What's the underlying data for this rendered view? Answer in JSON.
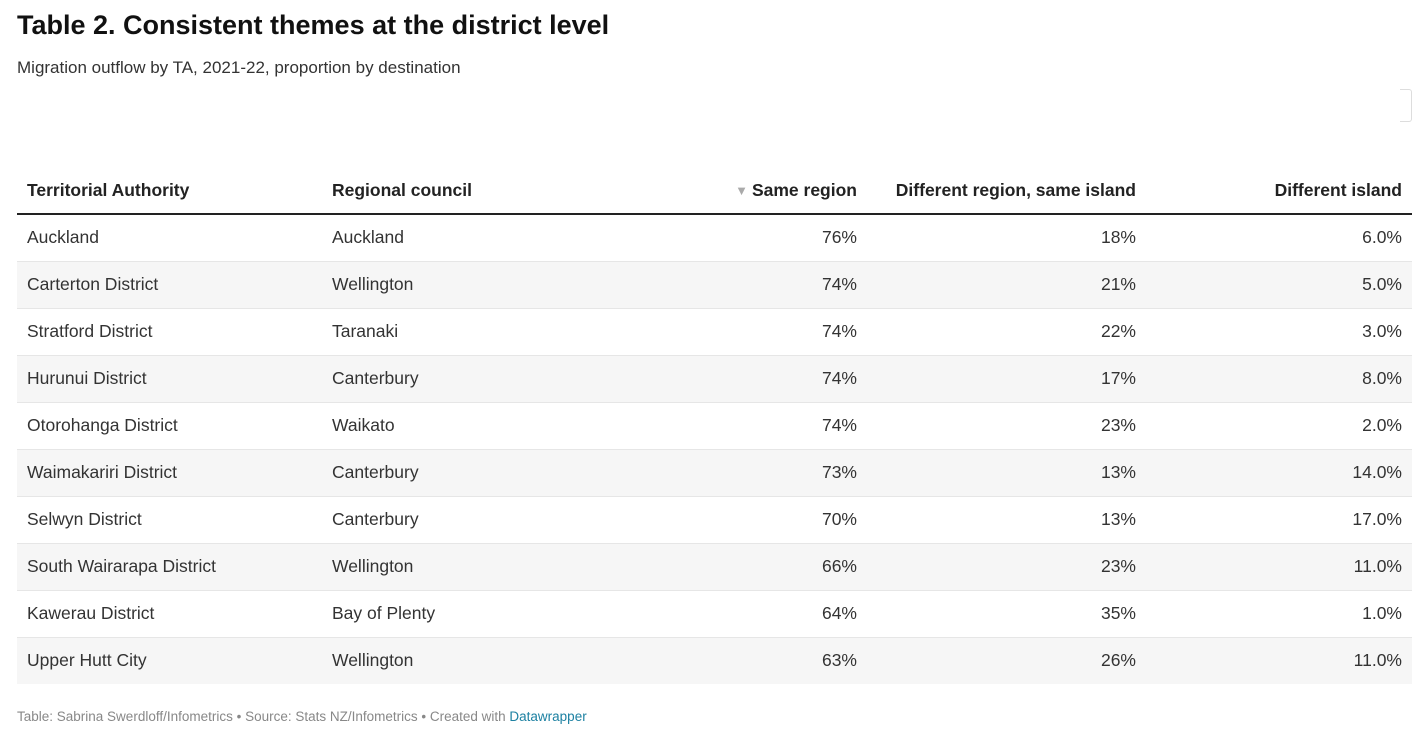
{
  "header": {
    "title": "Table 2. Consistent themes at the district level",
    "subtitle": "Migration outflow by TA, 2021-22, proportion by destination"
  },
  "chart_data": {
    "type": "table",
    "columns": [
      "Territorial Authority",
      "Regional council",
      "Same region",
      "Different region, same island",
      "Different island"
    ],
    "sort": {
      "column": "Same region",
      "direction": "descending",
      "icon": "sort-down-icon"
    },
    "rows": [
      [
        "Auckland",
        "Auckland",
        "76%",
        "18%",
        "6.0%"
      ],
      [
        "Carterton District",
        "Wellington",
        "74%",
        "21%",
        "5.0%"
      ],
      [
        "Stratford District",
        "Taranaki",
        "74%",
        "22%",
        "3.0%"
      ],
      [
        "Hurunui District",
        "Canterbury",
        "74%",
        "17%",
        "8.0%"
      ],
      [
        "Otorohanga District",
        "Waikato",
        "74%",
        "23%",
        "2.0%"
      ],
      [
        "Waimakariri District",
        "Canterbury",
        "73%",
        "13%",
        "14.0%"
      ],
      [
        "Selwyn District",
        "Canterbury",
        "70%",
        "13%",
        "17.0%"
      ],
      [
        "South Wairarapa District",
        "Wellington",
        "66%",
        "23%",
        "11.0%"
      ],
      [
        "Kawerau District",
        "Bay of Plenty",
        "64%",
        "35%",
        "1.0%"
      ],
      [
        "Upper Hutt City",
        "Wellington",
        "63%",
        "26%",
        "11.0%"
      ]
    ]
  },
  "footer": {
    "text": "Table: Sabrina Swerdloff/Infometrics • Source: Stats NZ/Infometrics • Created with ",
    "link": "Datawrapper"
  },
  "colors": {
    "link": "#1d81a2",
    "row_stripe": "#f6f6f6",
    "header_rule": "#222222"
  }
}
